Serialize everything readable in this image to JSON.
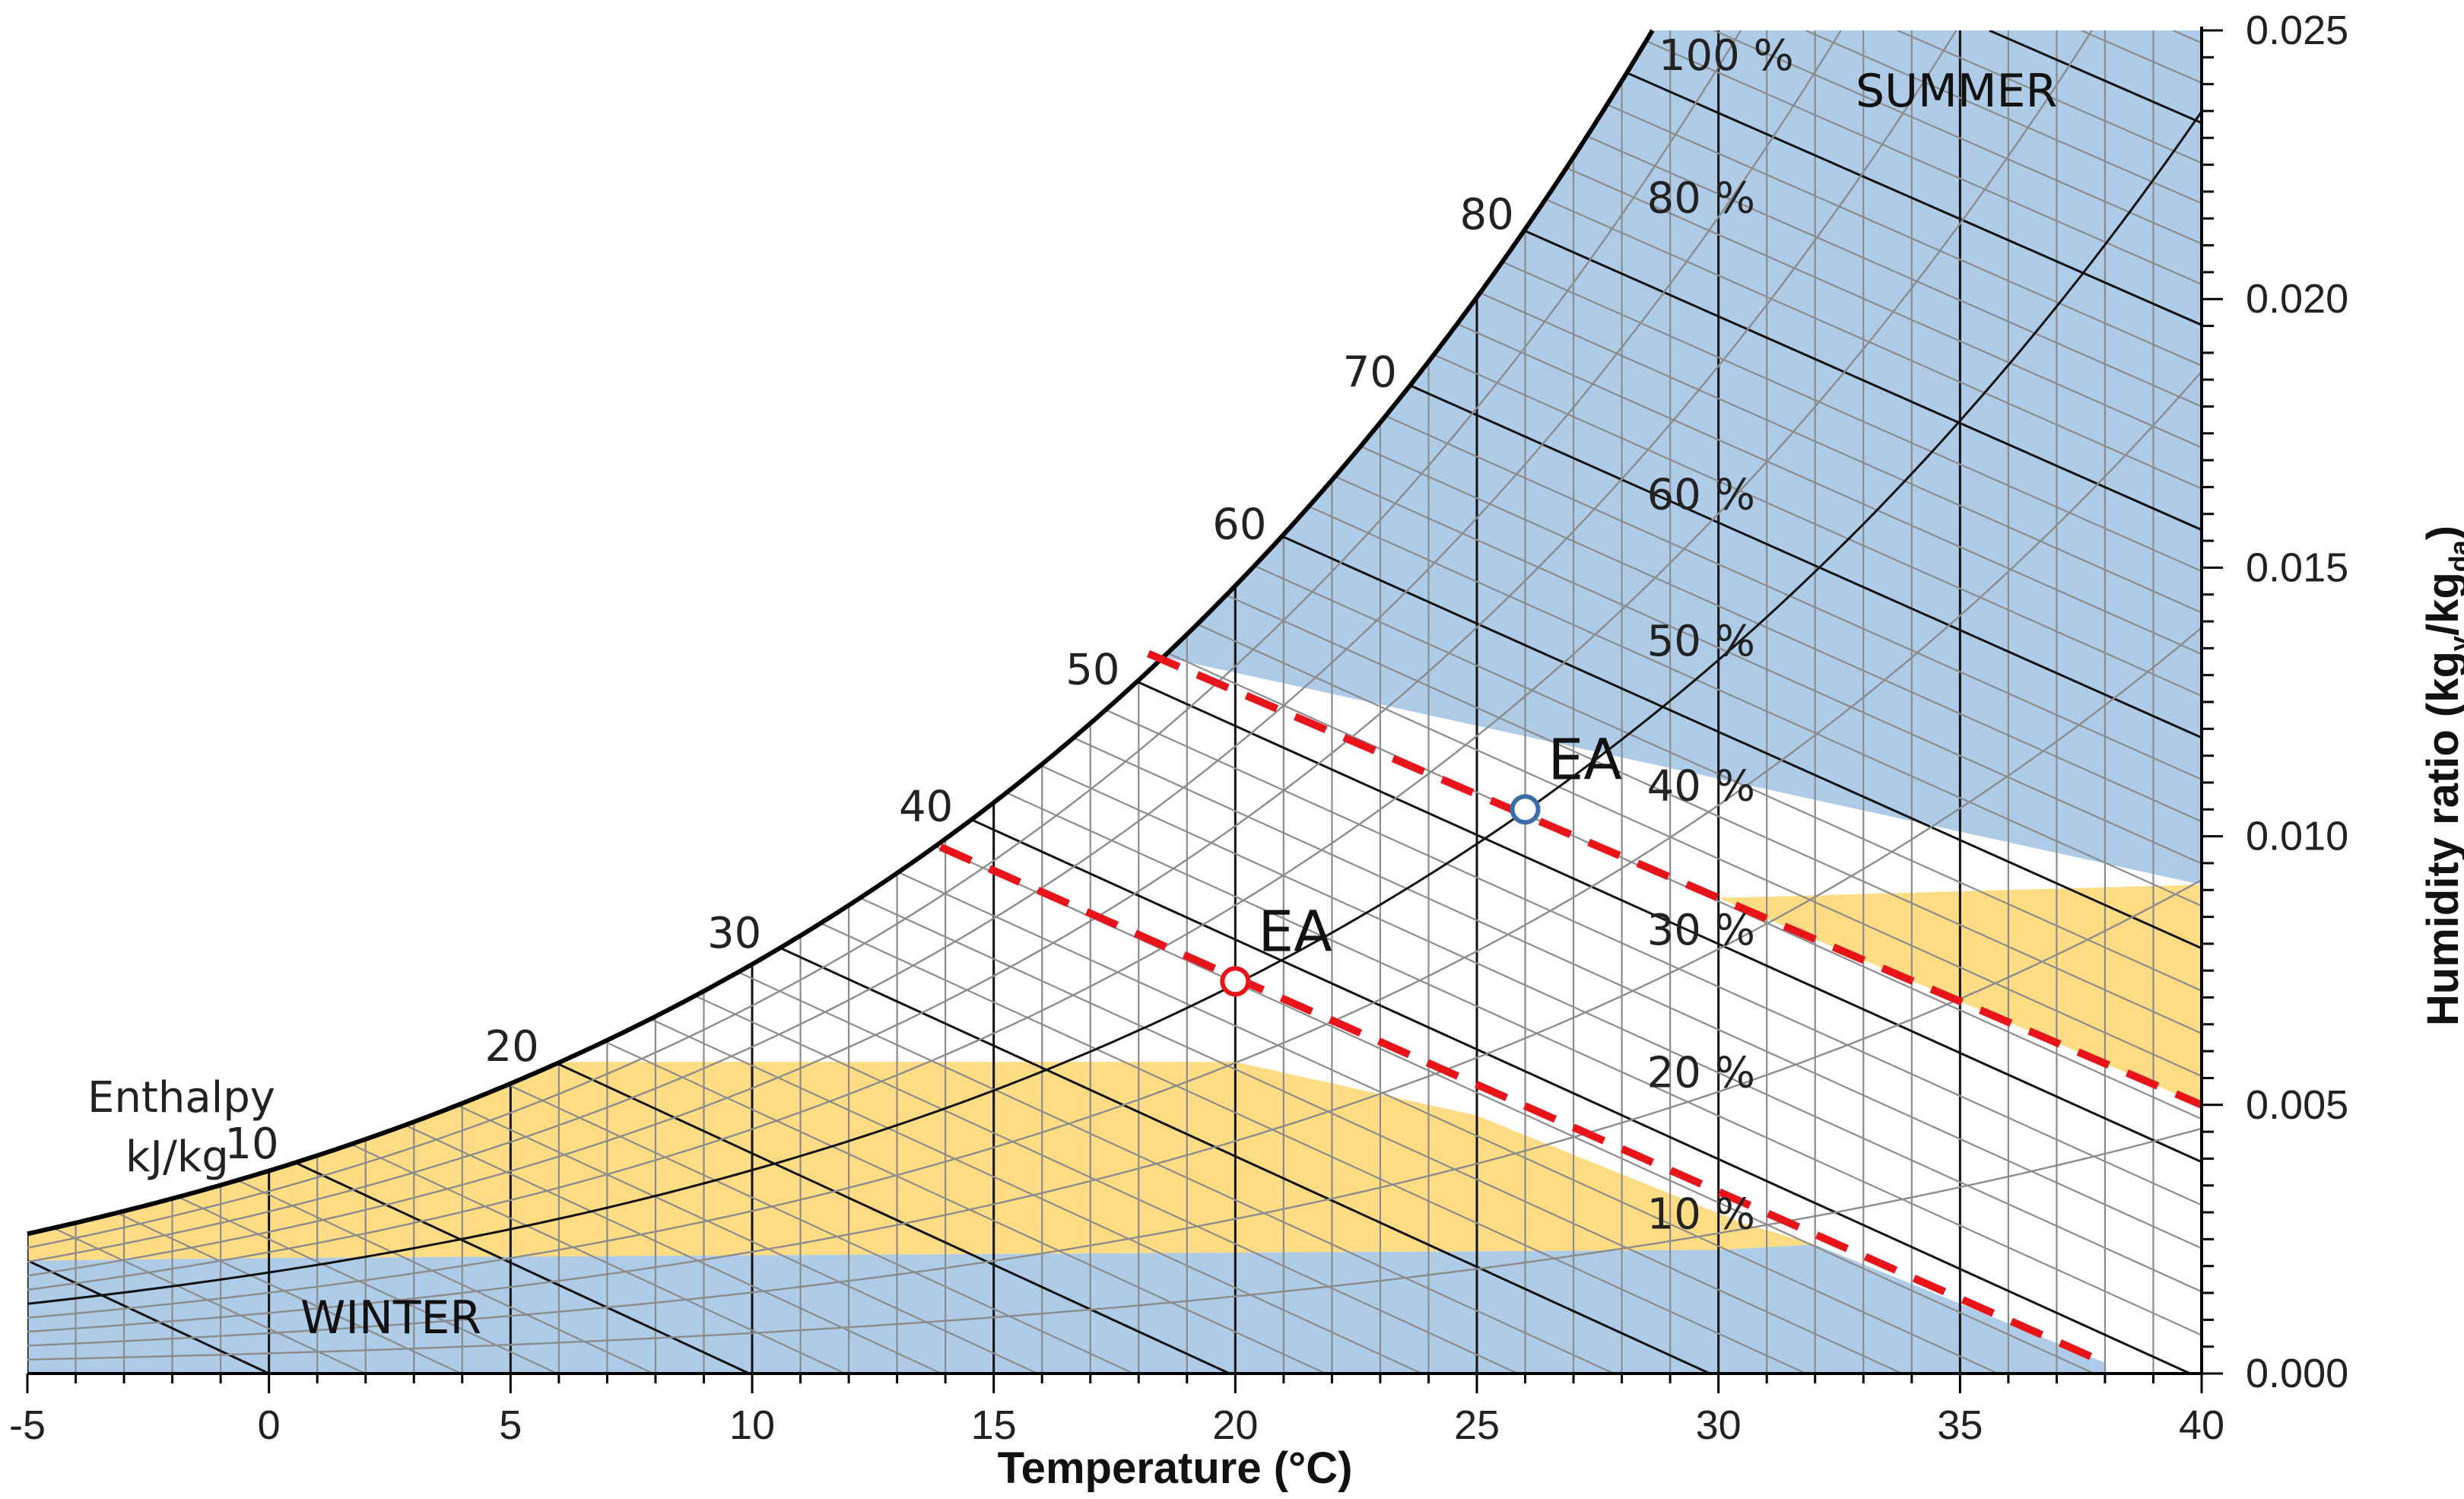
{
  "chart_data": {
    "type": "psychrometric",
    "xlabel": "Temperature (°C)",
    "ylabel": "Humidity ratio (kg",
    "ylabel_sub1": "v",
    "ylabel_mid": "/kg",
    "ylabel_sub2": "da",
    "ylabel_end": ")",
    "xlim": [
      -5,
      40
    ],
    "ylim": [
      0,
      0.025
    ],
    "x_ticks": [
      -5,
      0,
      5,
      10,
      15,
      20,
      25,
      30,
      35,
      40
    ],
    "x_tick_labels": [
      "-5",
      "0",
      "5",
      "10",
      "15",
      "20",
      "25",
      "30",
      "35",
      "40"
    ],
    "y_ticks": [
      0.0,
      0.005,
      0.01,
      0.015,
      0.02,
      0.025
    ],
    "y_tick_labels": [
      "0.000",
      "0.005",
      "0.010",
      "0.015",
      "0.020",
      "0.025"
    ],
    "rh_lines": [
      10,
      20,
      30,
      40,
      50,
      60,
      70,
      80,
      90,
      100
    ],
    "rh_labels": [
      {
        "rh": 100,
        "text": "100 %"
      },
      {
        "rh": 80,
        "text": "80 %"
      },
      {
        "rh": 60,
        "text": "60 %"
      },
      {
        "rh": 50,
        "text": "50 %"
      },
      {
        "rh": 40,
        "text": "40 %"
      },
      {
        "rh": 30,
        "text": "30 %"
      },
      {
        "rh": 20,
        "text": "20 %"
      },
      {
        "rh": 10,
        "text": "10 %"
      }
    ],
    "enthalpy_title": [
      "Enthalpy",
      "kJ/kg"
    ],
    "enthalpy_labels": [
      {
        "h": 10,
        "text": "10"
      },
      {
        "h": 20,
        "text": "20"
      },
      {
        "h": 30,
        "text": "30"
      },
      {
        "h": 40,
        "text": "40"
      },
      {
        "h": 50,
        "text": "50"
      },
      {
        "h": 60,
        "text": "60"
      },
      {
        "h": 70,
        "text": "70"
      },
      {
        "h": 80,
        "text": "80"
      }
    ],
    "regions": [
      {
        "name": "SUMMER",
        "label": "SUMMER",
        "color": "#aecbe8"
      },
      {
        "name": "WINTER",
        "label": "WINTER",
        "color": "#aecbe8"
      },
      {
        "name": "humid-band",
        "color": "#fddc83"
      }
    ],
    "points": [
      {
        "label": "EA",
        "t": 26.0,
        "w": 0.0105,
        "color": "#3b6ea8"
      },
      {
        "label": "EA",
        "t": 20.0,
        "w": 0.0073,
        "color": "#e8141a"
      }
    ],
    "dashed_lines": [
      {
        "from": [
          18.2,
          0.0134
        ],
        "to": [
          40.0,
          0.005
        ],
        "color": "#e8141a"
      },
      {
        "from": [
          13.9,
          0.0098
        ],
        "to": [
          38.0,
          0.0002
        ],
        "color": "#e8141a"
      }
    ],
    "colors": {
      "blue_region": "#aecbe8",
      "yellow_region": "#fddc83",
      "dashed": "#e8141a",
      "grid_gray": "#8c8c8c",
      "grid_black": "#111111"
    }
  }
}
